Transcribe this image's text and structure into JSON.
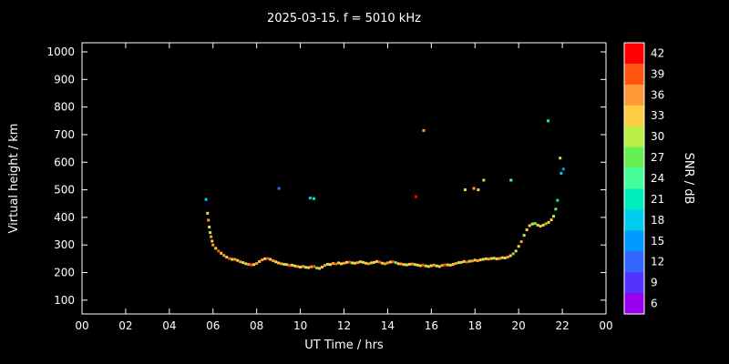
{
  "title": "2025-03-15. f = 5010 kHz",
  "chart_data": {
    "type": "scatter",
    "title": "2025-03-15. f = 5010 kHz",
    "xlabel": "UT Time / hrs",
    "ylabel": "Virtual height / km",
    "xlim": [
      0,
      24
    ],
    "ylim": [
      50,
      1033
    ],
    "grid": false,
    "background": "#000000",
    "frame_color": "#ffffff",
    "x_tick_values": [
      0,
      2,
      4,
      6,
      8,
      10,
      12,
      14,
      16,
      18,
      20,
      22,
      24
    ],
    "x_tick_labels": [
      "00",
      "02",
      "04",
      "06",
      "08",
      "10",
      "12",
      "14",
      "16",
      "18",
      "20",
      "22",
      "00"
    ],
    "y_tick_values": [
      100,
      200,
      300,
      400,
      500,
      600,
      700,
      800,
      900,
      1000
    ],
    "colorbar": {
      "label": "SNR / dB",
      "ticks": [
        6,
        9,
        12,
        15,
        18,
        21,
        24,
        27,
        30,
        33,
        36,
        39,
        42
      ],
      "colors": [
        "#9900ee",
        "#5533ff",
        "#3366ff",
        "#0099ff",
        "#00ccee",
        "#00eebb",
        "#44ff99",
        "#66ee55",
        "#bbee44",
        "#ffcc44",
        "#ff9933",
        "#ff5511",
        "#ff0000"
      ],
      "legend_position": "right"
    },
    "points": [
      [
        5.68,
        465,
        18
      ],
      [
        5.75,
        415,
        33
      ],
      [
        5.79,
        390,
        36
      ],
      [
        5.83,
        365,
        33
      ],
      [
        5.87,
        345,
        30
      ],
      [
        5.91,
        330,
        36
      ],
      [
        5.96,
        314,
        33
      ],
      [
        6.0,
        300,
        36
      ],
      [
        6.125,
        288,
        33
      ],
      [
        6.25,
        278,
        39
      ],
      [
        6.375,
        270,
        33
      ],
      [
        6.5,
        262,
        36
      ],
      [
        6.625,
        256,
        33
      ],
      [
        6.75,
        251,
        39
      ],
      [
        6.875,
        248,
        33
      ],
      [
        7.0,
        248,
        36
      ],
      [
        7.125,
        244,
        33
      ],
      [
        7.25,
        239,
        36
      ],
      [
        7.375,
        236,
        33
      ],
      [
        7.5,
        232,
        30
      ],
      [
        7.625,
        230,
        36
      ],
      [
        7.75,
        228,
        39
      ],
      [
        7.875,
        229,
        33
      ],
      [
        8.0,
        233,
        36
      ],
      [
        8.125,
        240,
        33
      ],
      [
        8.25,
        246,
        36
      ],
      [
        8.375,
        250,
        33
      ],
      [
        8.5,
        251,
        39
      ],
      [
        8.625,
        248,
        33
      ],
      [
        8.75,
        243,
        36
      ],
      [
        8.875,
        239,
        33
      ],
      [
        9.0,
        235,
        33
      ],
      [
        9.125,
        232,
        36
      ],
      [
        9.25,
        230,
        30
      ],
      [
        9.375,
        229,
        33
      ],
      [
        9.5,
        226,
        39
      ],
      [
        9.625,
        227,
        33
      ],
      [
        9.75,
        224,
        30
      ],
      [
        9.875,
        222,
        36
      ],
      [
        10.0,
        220,
        33
      ],
      [
        10.125,
        222,
        36
      ],
      [
        10.25,
        219,
        30
      ],
      [
        10.375,
        218,
        33
      ],
      [
        10.5,
        221,
        36
      ],
      [
        10.625,
        222,
        39
      ],
      [
        10.75,
        217,
        27
      ],
      [
        10.875,
        215,
        33
      ],
      [
        11.0,
        220,
        33
      ],
      [
        11.125,
        226,
        36
      ],
      [
        11.25,
        230,
        30
      ],
      [
        11.375,
        229,
        33
      ],
      [
        11.5,
        233,
        36
      ],
      [
        11.625,
        231,
        39
      ],
      [
        11.75,
        235,
        30
      ],
      [
        11.875,
        232,
        33
      ],
      [
        12.0,
        234,
        36
      ],
      [
        12.125,
        237,
        33
      ],
      [
        12.25,
        238,
        39
      ],
      [
        12.375,
        235,
        30
      ],
      [
        12.5,
        234,
        33
      ],
      [
        12.625,
        236,
        36
      ],
      [
        12.75,
        239,
        33
      ],
      [
        12.875,
        237,
        30
      ],
      [
        13.0,
        234,
        33
      ],
      [
        13.125,
        232,
        36
      ],
      [
        13.25,
        235,
        30
      ],
      [
        13.375,
        237,
        33
      ],
      [
        13.5,
        240,
        33
      ],
      [
        13.625,
        238,
        39
      ],
      [
        13.75,
        234,
        30
      ],
      [
        13.875,
        232,
        36
      ],
      [
        14.0,
        235,
        36
      ],
      [
        14.125,
        238,
        33
      ],
      [
        14.25,
        239,
        39
      ],
      [
        14.375,
        236,
        27
      ],
      [
        14.5,
        232,
        33
      ],
      [
        14.625,
        231,
        36
      ],
      [
        14.75,
        229,
        33
      ],
      [
        14.875,
        228,
        30
      ],
      [
        15.0,
        230,
        33
      ],
      [
        15.125,
        231,
        36
      ],
      [
        15.25,
        229,
        30
      ],
      [
        15.375,
        227,
        33
      ],
      [
        15.5,
        225,
        33
      ],
      [
        15.625,
        227,
        39
      ],
      [
        15.75,
        224,
        30
      ],
      [
        15.875,
        222,
        33
      ],
      [
        16.0,
        225,
        33
      ],
      [
        16.125,
        227,
        36
      ],
      [
        16.25,
        224,
        30
      ],
      [
        16.375,
        222,
        33
      ],
      [
        16.5,
        226,
        36
      ],
      [
        16.625,
        228,
        39
      ],
      [
        16.75,
        228,
        30
      ],
      [
        16.875,
        227,
        33
      ],
      [
        17.0,
        230,
        33
      ],
      [
        17.125,
        233,
        36
      ],
      [
        17.25,
        236,
        30
      ],
      [
        17.375,
        237,
        33
      ],
      [
        17.5,
        240,
        33
      ],
      [
        17.625,
        238,
        39
      ],
      [
        17.75,
        241,
        30
      ],
      [
        17.875,
        242,
        36
      ],
      [
        18.0,
        245,
        33
      ],
      [
        18.125,
        243,
        36
      ],
      [
        18.25,
        246,
        33
      ],
      [
        18.375,
        248,
        30
      ],
      [
        18.5,
        250,
        33
      ],
      [
        18.625,
        249,
        36
      ],
      [
        18.75,
        251,
        30
      ],
      [
        18.875,
        252,
        33
      ],
      [
        19.0,
        250,
        33
      ],
      [
        19.125,
        251,
        36
      ],
      [
        19.25,
        254,
        33
      ],
      [
        19.375,
        253,
        30
      ],
      [
        19.5,
        256,
        36
      ],
      [
        19.625,
        261,
        33
      ],
      [
        19.75,
        268,
        27
      ],
      [
        19.875,
        278,
        33
      ],
      [
        20.0,
        295,
        33
      ],
      [
        20.125,
        312,
        36
      ],
      [
        20.25,
        335,
        30
      ],
      [
        20.375,
        355,
        33
      ],
      [
        20.5,
        370,
        33
      ],
      [
        20.625,
        376,
        30
      ],
      [
        20.75,
        378,
        27
      ],
      [
        20.875,
        372,
        33
      ],
      [
        21.0,
        368,
        33
      ],
      [
        21.125,
        372,
        30
      ],
      [
        21.25,
        377,
        36
      ],
      [
        21.375,
        382,
        33
      ],
      [
        21.5,
        391,
        33
      ],
      [
        21.6,
        404,
        30
      ],
      [
        21.7,
        430,
        27
      ],
      [
        21.78,
        462,
        21
      ],
      [
        9.02,
        505,
        12
      ],
      [
        10.45,
        470,
        18
      ],
      [
        10.62,
        468,
        21
      ],
      [
        15.3,
        475,
        42
      ],
      [
        15.65,
        715,
        36
      ],
      [
        17.55,
        500,
        30
      ],
      [
        17.95,
        505,
        36
      ],
      [
        18.15,
        500,
        33
      ],
      [
        18.4,
        535,
        30
      ],
      [
        19.65,
        535,
        24
      ],
      [
        21.35,
        750,
        21
      ],
      [
        21.9,
        615,
        30
      ],
      [
        21.95,
        560,
        18
      ],
      [
        22.05,
        575,
        15
      ]
    ]
  }
}
